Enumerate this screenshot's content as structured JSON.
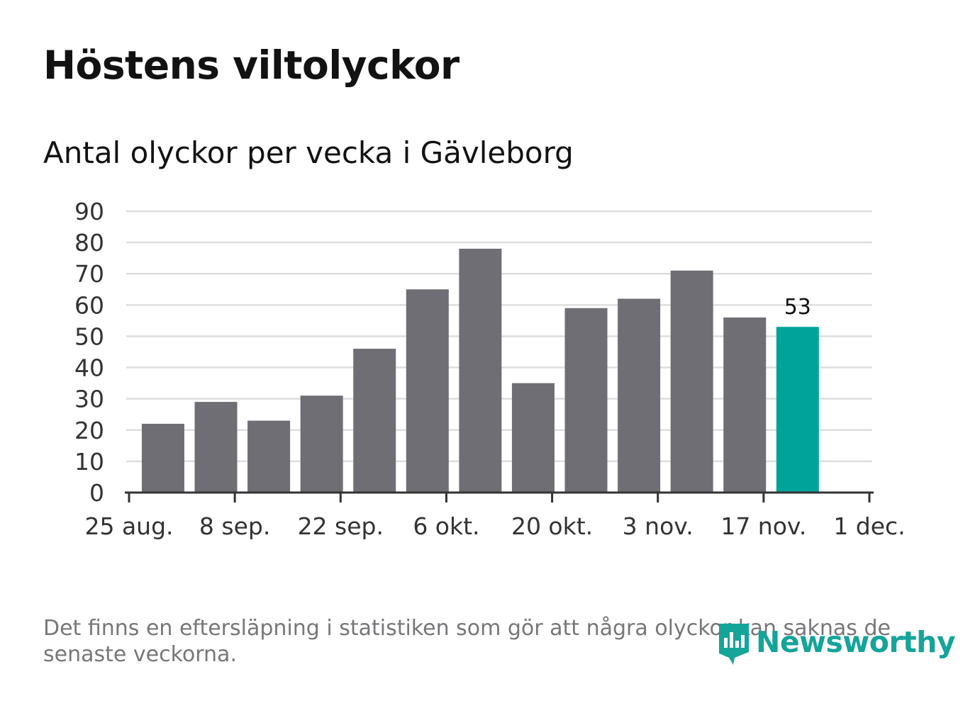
{
  "title": "Höstens viltolyckor",
  "subtitle": "Antal olyckor per vecka i Gävleborg",
  "footnote": "Det finns en eftersläpning i statistiken som gör att några olyckor kan saknas de senaste veckorna.",
  "brand": {
    "name": "Newsworthy",
    "icon": "newsworthy-logo-icon",
    "color": "#14a49a"
  },
  "colors": {
    "bar": "#6f6e75",
    "highlight": "#00a39a",
    "grid": "#dedede",
    "axis": "#333333"
  },
  "chart_data": {
    "type": "bar",
    "title": "Antal olyckor per vecka i Gävleborg",
    "ylim": [
      0,
      90
    ],
    "yticks": [
      0,
      10,
      20,
      30,
      40,
      50,
      60,
      70,
      80,
      90
    ],
    "ytick_labels": [
      "0",
      "10",
      "20",
      "30",
      "40",
      "50",
      "60",
      "70",
      "80",
      "90"
    ],
    "xlim": [
      "2019-08-25",
      "2019-12-01"
    ],
    "xticks": [
      "2019-08-25",
      "2019-09-08",
      "2019-09-22",
      "2019-10-06",
      "2019-10-20",
      "2019-11-03",
      "2019-11-17",
      "2019-12-01"
    ],
    "xtick_labels": [
      "25 aug.",
      "8 sep.",
      "22 sep.",
      "6 okt.",
      "20 okt.",
      "3 nov.",
      "17 nov.",
      "1 dec."
    ],
    "categories": [
      "2019-08-26",
      "2019-09-02",
      "2019-09-09",
      "2019-09-16",
      "2019-09-23",
      "2019-09-30",
      "2019-10-07",
      "2019-10-14",
      "2019-10-21",
      "2019-10-28",
      "2019-11-04",
      "2019-11-11",
      "2019-11-18"
    ],
    "values": [
      22,
      29,
      23,
      31,
      46,
      65,
      78,
      35,
      59,
      62,
      71,
      56,
      53
    ],
    "highlight_index": 12,
    "highlight_label": "53",
    "grid": true
  }
}
